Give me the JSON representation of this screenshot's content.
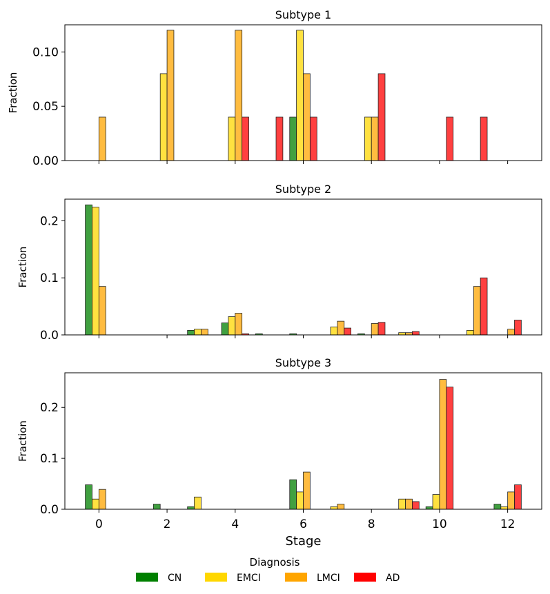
{
  "chart_data": {
    "type": "bar",
    "xlabel": "Stage",
    "ylabel": "Fraction",
    "x_ticks": [
      0,
      2,
      4,
      6,
      8,
      10,
      12
    ],
    "xlim": [
      -1,
      13
    ],
    "series_names": [
      "CN",
      "EMCI",
      "LMCI",
      "AD"
    ],
    "colors": {
      "CN": "#008000",
      "EMCI": "#FFD700",
      "LMCI": "#FFA500",
      "AD": "#FF0000"
    },
    "legend": {
      "title": "Diagnosis",
      "entries": [
        "CN",
        "EMCI",
        "LMCI",
        "AD"
      ],
      "placement": "bottom-center"
    },
    "panels": [
      {
        "title": "Subtype 1",
        "ylim": [
          0,
          0.125
        ],
        "y_ticks": [
          0.0,
          0.05,
          0.1
        ],
        "y_tick_labels": [
          "0.00",
          "0.05",
          "0.10"
        ],
        "stages": [
          0,
          1,
          2,
          3,
          4,
          5,
          6,
          7,
          8,
          9,
          10,
          11,
          12
        ],
        "series": [
          {
            "name": "CN",
            "values": [
              0,
              0,
              0,
              0,
              0,
              0,
              0.04,
              0,
              0,
              0,
              0,
              0,
              0
            ]
          },
          {
            "name": "EMCI",
            "values": [
              0,
              0,
              0.08,
              0,
              0.04,
              0,
              0.12,
              0,
              0.04,
              0,
              0,
              0,
              0
            ]
          },
          {
            "name": "LMCI",
            "values": [
              0.04,
              0,
              0.12,
              0,
              0.12,
              0,
              0.08,
              0,
              0.04,
              0,
              0,
              0,
              0
            ]
          },
          {
            "name": "AD",
            "values": [
              0,
              0,
              0,
              0,
              0.04,
              0.04,
              0.04,
              0,
              0.08,
              0,
              0.04,
              0.04,
              0
            ]
          }
        ]
      },
      {
        "title": "Subtype 2",
        "ylim": [
          0,
          0.238
        ],
        "y_ticks": [
          0.0,
          0.1,
          0.2
        ],
        "y_tick_labels": [
          "0.0",
          "0.1",
          "0.2"
        ],
        "stages": [
          0,
          1,
          2,
          3,
          4,
          5,
          6,
          7,
          8,
          9,
          10,
          11,
          12
        ],
        "series": [
          {
            "name": "CN",
            "values": [
              0.228,
              0,
              0,
              0.008,
              0.021,
              0.002,
              0.002,
              0,
              0.002,
              0,
              0,
              0,
              0
            ]
          },
          {
            "name": "EMCI",
            "values": [
              0.224,
              0,
              0,
              0.01,
              0.032,
              0,
              0,
              0.014,
              0,
              0.004,
              0,
              0.008,
              0
            ]
          },
          {
            "name": "LMCI",
            "values": [
              0.085,
              0,
              0,
              0.01,
              0.038,
              0,
              0,
              0.024,
              0.02,
              0.004,
              0,
              0.085,
              0.01
            ]
          },
          {
            "name": "AD",
            "values": [
              0,
              0,
              0,
              0,
              0.002,
              0,
              0,
              0.012,
              0.022,
              0.006,
              0,
              0.1,
              0.026
            ]
          }
        ]
      },
      {
        "title": "Subtype 3",
        "ylim": [
          0,
          0.268
        ],
        "y_ticks": [
          0.0,
          0.1,
          0.2
        ],
        "y_tick_labels": [
          "0.0",
          "0.1",
          "0.2"
        ],
        "stages": [
          0,
          1,
          2,
          3,
          4,
          5,
          6,
          7,
          8,
          9,
          10,
          11,
          12
        ],
        "series": [
          {
            "name": "CN",
            "values": [
              0.048,
              0,
              0.01,
              0.005,
              0,
              0,
              0.058,
              0,
              0,
              0,
              0.005,
              0,
              0.01
            ]
          },
          {
            "name": "EMCI",
            "values": [
              0.02,
              0,
              0,
              0.024,
              0,
              0,
              0.034,
              0.005,
              0,
              0.02,
              0.029,
              0,
              0.005
            ]
          },
          {
            "name": "LMCI",
            "values": [
              0.039,
              0,
              0,
              0,
              0,
              0,
              0.073,
              0.01,
              0,
              0.02,
              0.255,
              0,
              0.034
            ]
          },
          {
            "name": "AD",
            "values": [
              0,
              0,
              0,
              0,
              0,
              0,
              0,
              0,
              0,
              0.015,
              0.24,
              0,
              0.048
            ]
          }
        ]
      }
    ]
  }
}
